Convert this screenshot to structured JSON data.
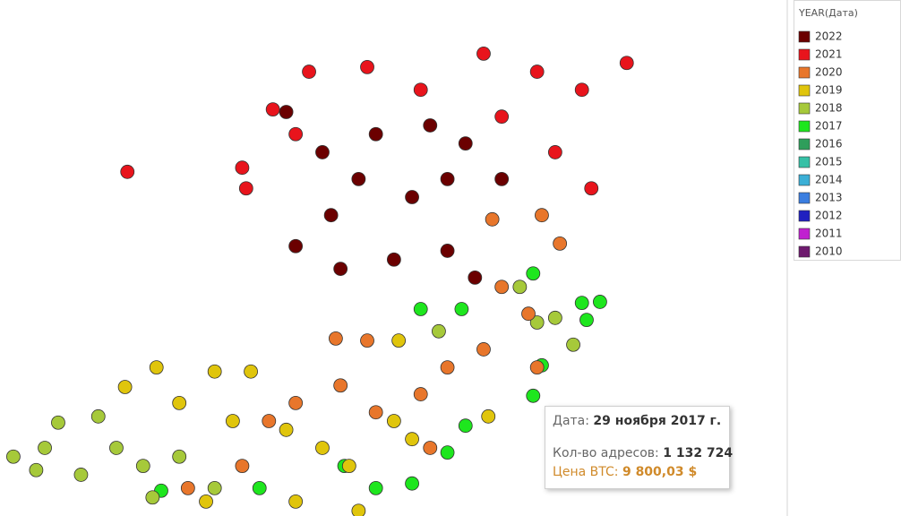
{
  "chart_data": {
    "type": "scatter",
    "xlim": [
      0,
      100
    ],
    "ylim": [
      0,
      100
    ],
    "legend_title": "YEAR(Дата)",
    "legend": "right",
    "series": [
      {
        "name": "2022",
        "color": "#6b0000",
        "x": [
          36.4,
          41.0,
          47.8,
          54.7,
          59.2,
          56.9,
          63.8,
          37.6,
          43.3,
          50.1,
          56.9,
          60.4,
          52.4,
          45.6,
          42.1
        ],
        "y": [
          78.3,
          70.5,
          74.0,
          75.7,
          72.2,
          65.3,
          65.3,
          52.3,
          47.9,
          49.7,
          51.4,
          46.2,
          61.8,
          65.3,
          58.3
        ]
      },
      {
        "name": "2021",
        "color": "#e8141c",
        "x": [
          16.2,
          30.8,
          31.3,
          39.3,
          46.7,
          53.5,
          61.5,
          68.3,
          74.0,
          79.7,
          70.6,
          75.2,
          37.6,
          34.7,
          63.8
        ],
        "y": [
          66.7,
          67.5,
          63.5,
          86.1,
          87.0,
          82.6,
          89.6,
          86.1,
          82.6,
          87.8,
          70.5,
          63.5,
          74.0,
          78.8,
          77.4
        ]
      },
      {
        "name": "2020",
        "color": "#e8762b",
        "x": [
          68.9,
          71.2,
          62.6,
          63.8,
          67.2,
          61.5,
          56.9,
          53.5,
          47.8,
          43.3,
          37.6,
          34.2,
          30.8,
          23.9,
          54.7,
          46.7,
          42.7,
          68.3
        ],
        "y": [
          58.3,
          52.8,
          57.5,
          44.4,
          39.2,
          32.3,
          28.8,
          23.6,
          20.1,
          25.3,
          21.9,
          18.4,
          9.7,
          5.4,
          13.2,
          34.0,
          34.4,
          28.8
        ]
      },
      {
        "name": "2019",
        "color": "#e0c50c",
        "x": [
          19.9,
          27.3,
          31.9,
          15.9,
          22.8,
          29.6,
          36.4,
          41.0,
          44.4,
          50.1,
          37.6,
          45.6,
          52.4,
          62.1,
          50.7,
          26.2
        ],
        "y": [
          28.8,
          28.0,
          28.0,
          25.0,
          21.9,
          18.4,
          16.7,
          13.2,
          9.7,
          18.4,
          2.8,
          1.0,
          14.9,
          19.3,
          34.0,
          2.8
        ]
      },
      {
        "name": "2018",
        "color": "#a6c93a",
        "x": [
          1.7,
          5.7,
          7.4,
          12.5,
          14.8,
          10.3,
          18.2,
          22.8,
          27.3,
          19.4,
          4.6,
          55.8,
          68.3,
          70.6,
          72.9,
          66.1
        ],
        "y": [
          11.5,
          13.2,
          18.1,
          19.3,
          13.2,
          8.0,
          9.7,
          11.5,
          5.4,
          3.6,
          8.9,
          35.8,
          37.5,
          38.4,
          33.2,
          44.4
        ]
      },
      {
        "name": "2017",
        "color": "#1ee61e",
        "x": [
          67.8,
          74.0,
          76.3,
          74.6,
          68.9,
          67.8,
          59.2,
          56.9,
          52.4,
          47.8,
          43.8,
          33.0,
          20.5,
          53.5,
          58.7
        ],
        "y": [
          47.0,
          41.3,
          41.5,
          38.0,
          29.2,
          23.3,
          17.5,
          12.3,
          6.3,
          5.4,
          9.7,
          5.4,
          4.9,
          40.1,
          40.1
        ]
      },
      {
        "name": "2016",
        "color": "#2e9e5b",
        "x": [],
        "y": []
      },
      {
        "name": "2015",
        "color": "#36c0a6",
        "x": [],
        "y": []
      },
      {
        "name": "2014",
        "color": "#3bafd6",
        "x": [],
        "y": []
      },
      {
        "name": "2013",
        "color": "#3b7ee0",
        "x": [],
        "y": []
      },
      {
        "name": "2012",
        "color": "#2020c0",
        "x": [],
        "y": []
      },
      {
        "name": "2011",
        "color": "#c020d0",
        "x": [],
        "y": []
      },
      {
        "name": "2010",
        "color": "#6e1a6e",
        "x": [],
        "y": []
      }
    ]
  },
  "tooltip": {
    "date_label": "Дата:",
    "date": "29 ноября 2017 г.",
    "addresses_label": "Кол-во адресов:",
    "addresses": "1 132 724",
    "price_label": "Цена BTC:",
    "price": "9 800,03 $"
  }
}
